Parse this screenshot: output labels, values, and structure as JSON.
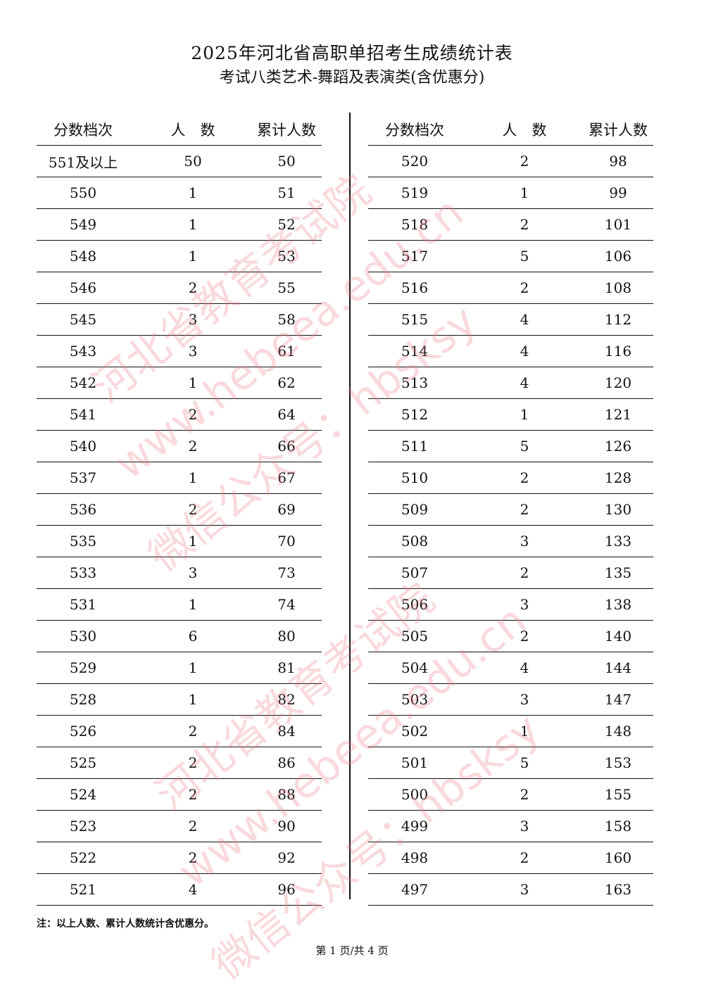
{
  "header": {
    "title": "2025年河北省高职单招考生成绩统计表",
    "subtitle": "考试八类艺术-舞蹈及表演类(含优惠分)"
  },
  "columns": [
    "分数档次",
    "人　数",
    "累计人数"
  ],
  "left_table": [
    [
      "551及以上",
      "50",
      "50"
    ],
    [
      "550",
      "1",
      "51"
    ],
    [
      "549",
      "1",
      "52"
    ],
    [
      "548",
      "1",
      "53"
    ],
    [
      "546",
      "2",
      "55"
    ],
    [
      "545",
      "3",
      "58"
    ],
    [
      "543",
      "3",
      "61"
    ],
    [
      "542",
      "1",
      "62"
    ],
    [
      "541",
      "2",
      "64"
    ],
    [
      "540",
      "2",
      "66"
    ],
    [
      "537",
      "1",
      "67"
    ],
    [
      "536",
      "2",
      "69"
    ],
    [
      "535",
      "1",
      "70"
    ],
    [
      "533",
      "3",
      "73"
    ],
    [
      "531",
      "1",
      "74"
    ],
    [
      "530",
      "6",
      "80"
    ],
    [
      "529",
      "1",
      "81"
    ],
    [
      "528",
      "1",
      "82"
    ],
    [
      "526",
      "2",
      "84"
    ],
    [
      "525",
      "2",
      "86"
    ],
    [
      "524",
      "2",
      "88"
    ],
    [
      "523",
      "2",
      "90"
    ],
    [
      "522",
      "2",
      "92"
    ],
    [
      "521",
      "4",
      "96"
    ]
  ],
  "right_table": [
    [
      "520",
      "2",
      "98"
    ],
    [
      "519",
      "1",
      "99"
    ],
    [
      "518",
      "2",
      "101"
    ],
    [
      "517",
      "5",
      "106"
    ],
    [
      "516",
      "2",
      "108"
    ],
    [
      "515",
      "4",
      "112"
    ],
    [
      "514",
      "4",
      "116"
    ],
    [
      "513",
      "4",
      "120"
    ],
    [
      "512",
      "1",
      "121"
    ],
    [
      "511",
      "5",
      "126"
    ],
    [
      "510",
      "2",
      "128"
    ],
    [
      "509",
      "2",
      "130"
    ],
    [
      "508",
      "3",
      "133"
    ],
    [
      "507",
      "2",
      "135"
    ],
    [
      "506",
      "3",
      "138"
    ],
    [
      "505",
      "2",
      "140"
    ],
    [
      "504",
      "4",
      "144"
    ],
    [
      "503",
      "3",
      "147"
    ],
    [
      "502",
      "1",
      "148"
    ],
    [
      "501",
      "5",
      "153"
    ],
    [
      "500",
      "2",
      "155"
    ],
    [
      "499",
      "3",
      "158"
    ],
    [
      "498",
      "2",
      "160"
    ],
    [
      "497",
      "3",
      "163"
    ]
  ],
  "note": "注：以上人数、累计人数统计含优惠分。",
  "footer": "第 1 页/共 4 页",
  "watermark": {
    "lines": [
      "河北省教育考试院",
      "www.hebeea.edu.cn",
      "微信公众号：hbsksy"
    ],
    "color": "#eb7882"
  }
}
